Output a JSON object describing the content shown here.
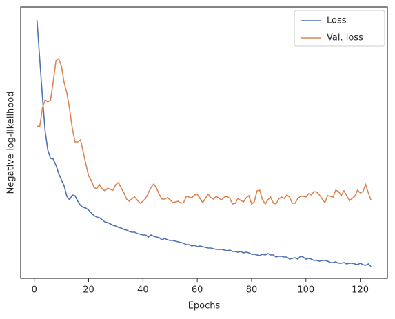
{
  "chart_data": {
    "type": "line",
    "x_label": "Epochs",
    "y_label": "Negative log-likelihood",
    "x": [
      1,
      2,
      3,
      4,
      5,
      6,
      7,
      8,
      9,
      10,
      11,
      12,
      13,
      14,
      15,
      16,
      17,
      18,
      19,
      20,
      21,
      22,
      23,
      24,
      25,
      26,
      27,
      28,
      29,
      30,
      31,
      32,
      33,
      34,
      35,
      36,
      37,
      38,
      39,
      40,
      41,
      42,
      43,
      44,
      45,
      46,
      47,
      48,
      49,
      50,
      51,
      52,
      53,
      54,
      55,
      56,
      57,
      58,
      59,
      60,
      61,
      62,
      63,
      64,
      65,
      66,
      67,
      68,
      69,
      70,
      71,
      72,
      73,
      74,
      75,
      76,
      77,
      78,
      79,
      80,
      81,
      82,
      83,
      84,
      85,
      86,
      87,
      88,
      89,
      90,
      91,
      92,
      93,
      94,
      95,
      96,
      97,
      98,
      99,
      100,
      101,
      102,
      103,
      104,
      105,
      106,
      107,
      108,
      109,
      110,
      111,
      112,
      113,
      114,
      115,
      116,
      117,
      118,
      119,
      120,
      121,
      122,
      123,
      124
    ],
    "series": [
      {
        "name": "Loss",
        "color": "#4c72b0",
        "values": [
          375,
          319,
          264,
          214,
          186,
          174,
          173,
          164,
          152,
          143,
          134,
          119,
          114,
          121,
          120,
          112,
          106,
          103,
          102,
          99,
          95,
          91,
          89,
          88,
          85,
          82,
          81,
          79,
          77,
          76,
          74,
          73,
          71,
          70,
          68,
          67,
          67,
          65,
          64,
          63,
          63,
          60,
          63,
          61,
          60,
          59,
          56,
          58,
          56,
          55,
          55,
          54,
          53,
          52,
          51,
          49,
          49,
          47,
          48,
          46,
          47,
          46,
          45,
          44,
          44,
          43,
          42,
          42,
          42,
          41,
          40,
          41,
          39,
          39,
          38,
          39,
          37,
          38,
          37,
          35,
          35,
          34,
          33,
          35,
          34,
          36,
          34,
          34,
          31,
          32,
          32,
          31,
          31,
          28,
          29,
          30,
          28,
          32,
          31,
          28,
          29,
          28,
          26,
          26,
          25,
          26,
          26,
          25,
          23,
          23,
          24,
          22,
          22,
          23,
          21,
          22,
          22,
          21,
          20,
          22,
          20,
          19,
          21,
          17
        ]
      },
      {
        "name": "Val. loss",
        "color": "#dd8452",
        "values": [
          221,
          220,
          247,
          259,
          256,
          259,
          286,
          316,
          319,
          308,
          284,
          269,
          246,
          218,
          198,
          198,
          201,
          184,
          166,
          149,
          142,
          132,
          130,
          136,
          130,
          127,
          131,
          129,
          128,
          136,
          139,
          131,
          124,
          115,
          112,
          116,
          118,
          113,
          109,
          112,
          116,
          124,
          132,
          137,
          131,
          122,
          115,
          115,
          117,
          114,
          110,
          111,
          112,
          109,
          110,
          119,
          118,
          117,
          121,
          122,
          116,
          110,
          116,
          122,
          117,
          115,
          119,
          116,
          114,
          118,
          119,
          116,
          108,
          109,
          116,
          113,
          111,
          117,
          120,
          108,
          111,
          127,
          128,
          114,
          108,
          114,
          118,
          109,
          108,
          115,
          118,
          116,
          121,
          118,
          109,
          109,
          116,
          119,
          119,
          118,
          123,
          121,
          126,
          125,
          121,
          115,
          110,
          120,
          119,
          118,
          128,
          126,
          120,
          127,
          120,
          113,
          116,
          119,
          128,
          124,
          126,
          136,
          124,
          113
        ]
      }
    ],
    "xlim": [
      -5,
      130
    ],
    "xticks": [
      0,
      20,
      40,
      60,
      80,
      100,
      120
    ],
    "ylim": [
      0,
      394
    ],
    "legend": "upper right"
  }
}
